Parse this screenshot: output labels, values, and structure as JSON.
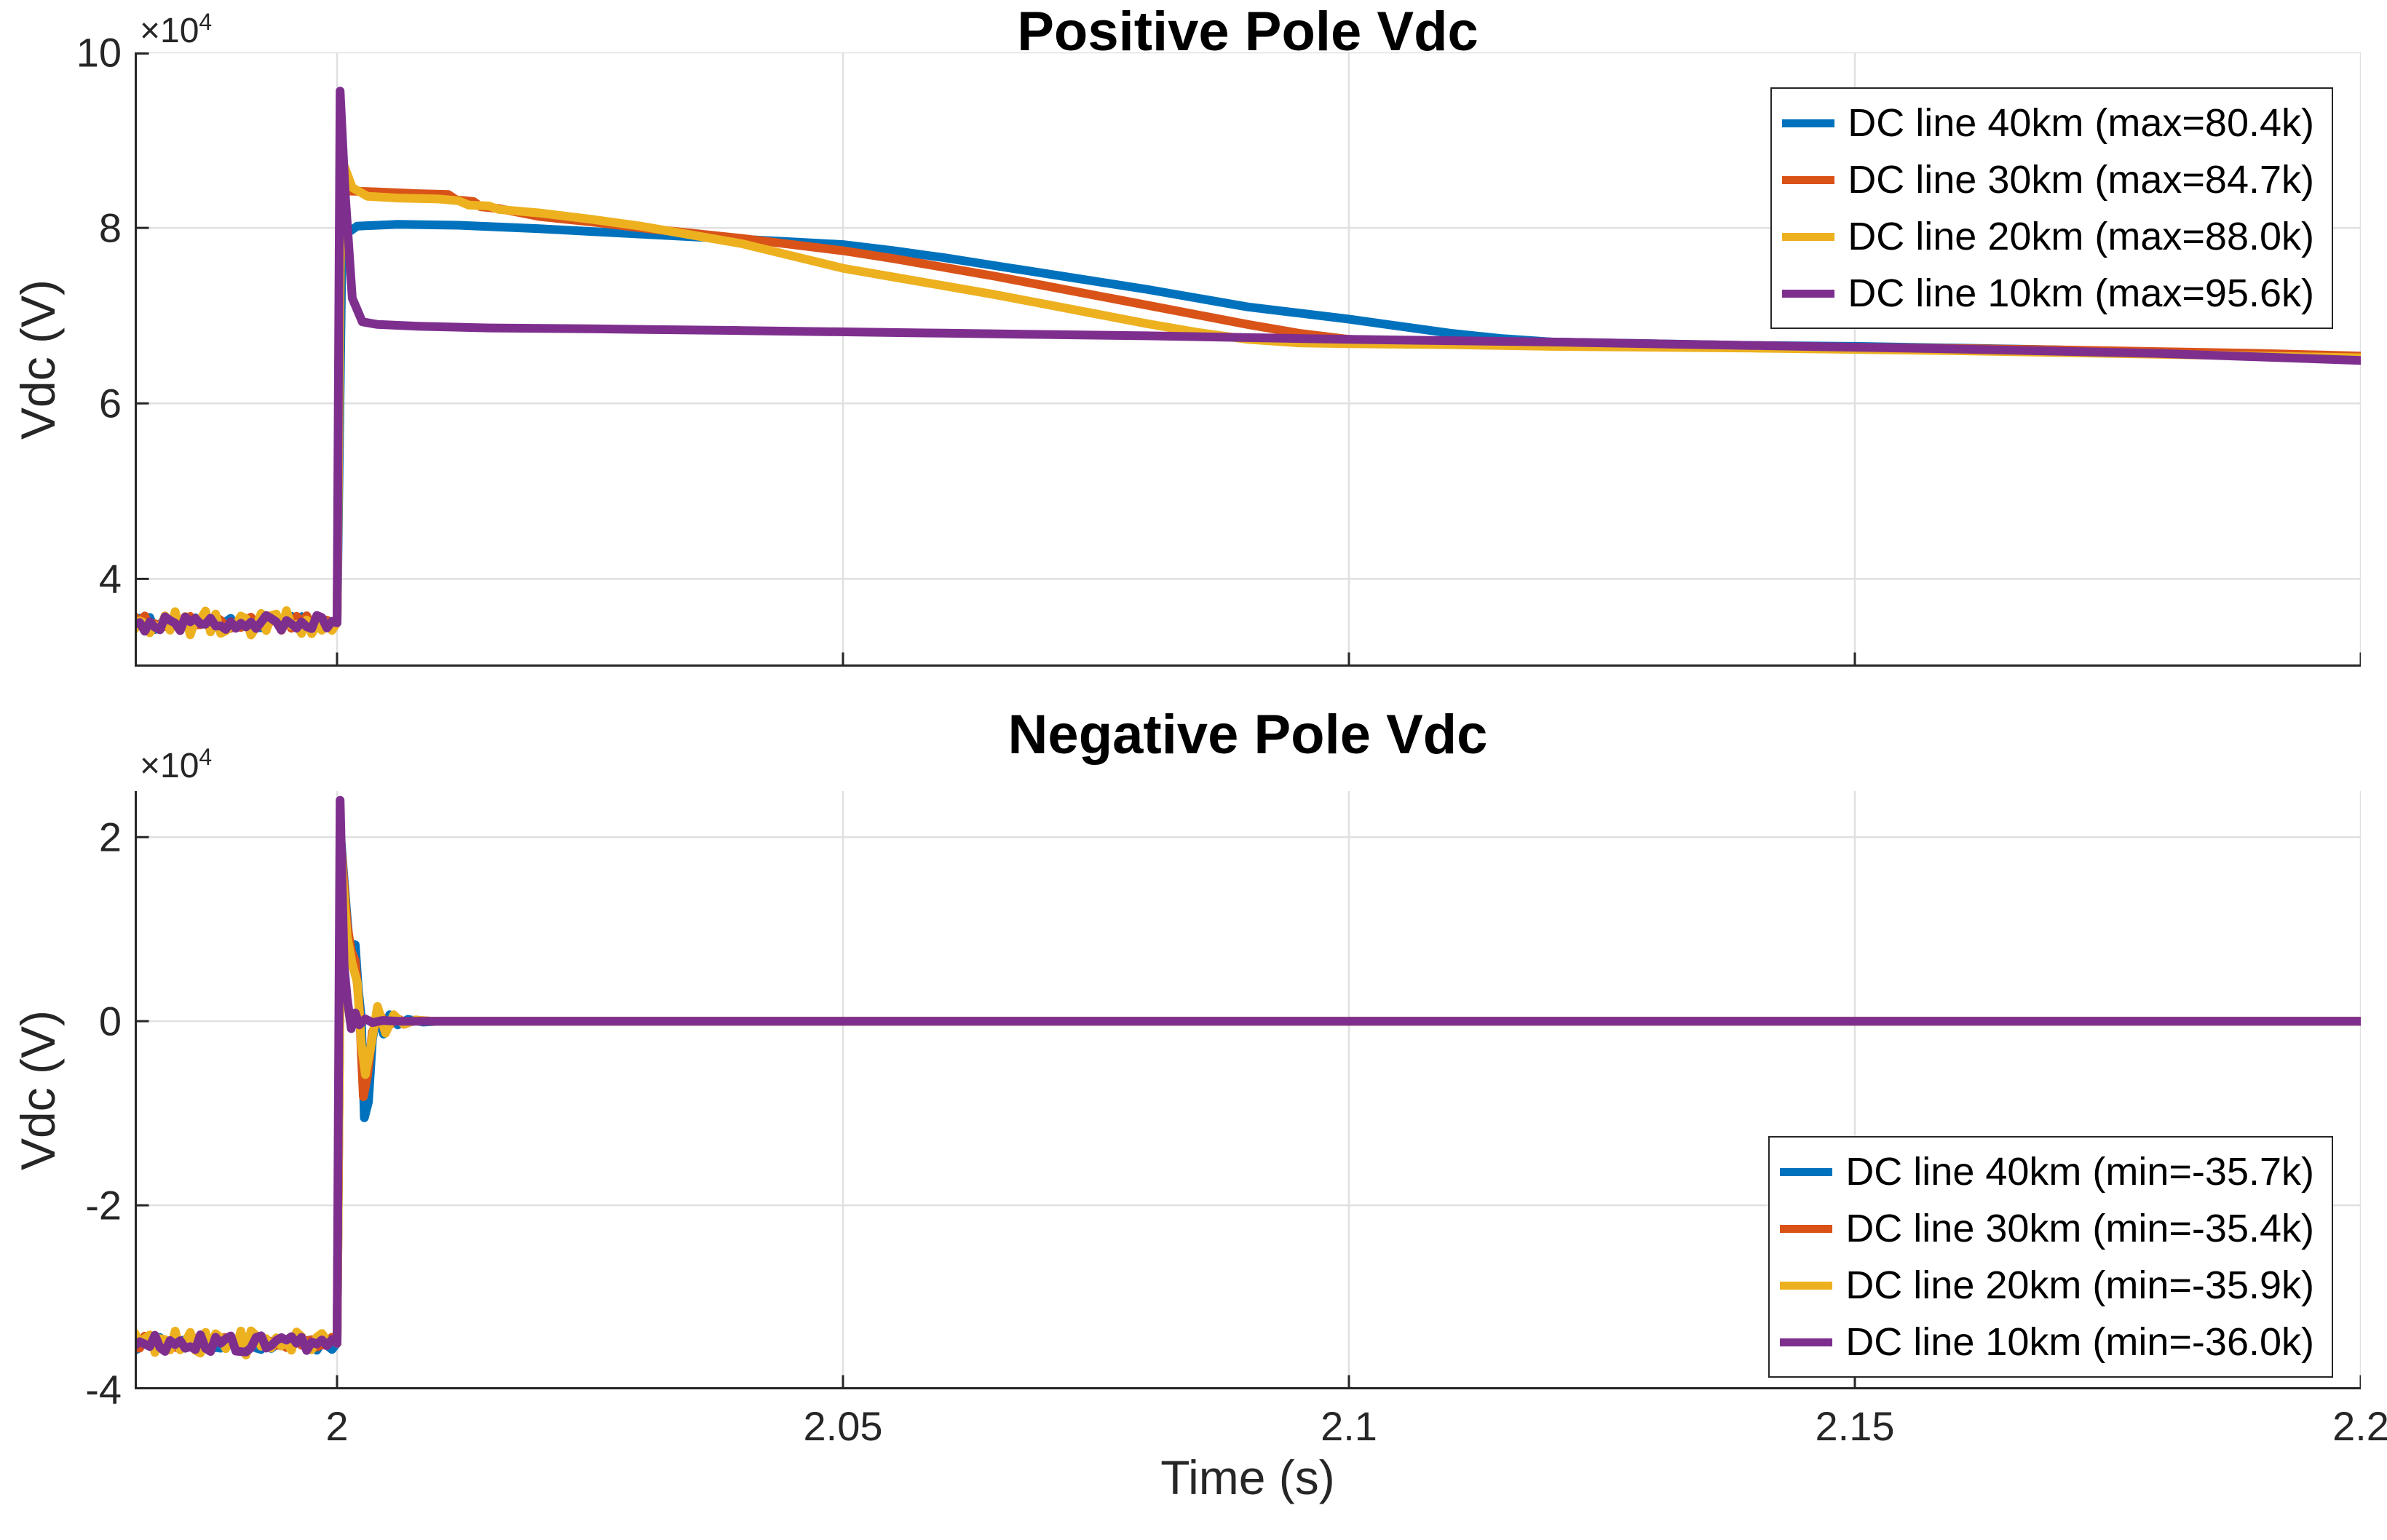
{
  "figure": {
    "xlabel": "Time (s)",
    "background": "#ffffff",
    "axis_color": "#262626",
    "grid_color": "#e0e0e0",
    "palette": {
      "blue": "#0072BD",
      "orange": "#D95319",
      "yellow": "#EDB120",
      "purple": "#7E2F8E"
    }
  },
  "chart_data": [
    {
      "type": "line",
      "title": "Positive Pole Vdc",
      "ylabel": "Vdc (V)",
      "y_exponent_base": "×10",
      "y_exponent_power": "4",
      "grid": true,
      "xlim": [
        1.98,
        2.2
      ],
      "ylim": [
        30000,
        100000
      ],
      "xticks": [
        2,
        2.05,
        2.1,
        2.15,
        2.2
      ],
      "xtick_labels": [
        "2",
        "2.05",
        "2.1",
        "2.15",
        "2.2"
      ],
      "show_xtick_labels": false,
      "yticks": [
        40000,
        60000,
        80000,
        100000
      ],
      "ytick_labels": [
        "4",
        "6",
        "8",
        "10"
      ],
      "legend_position": "top-right",
      "series": [
        {
          "name": "DC line 40km",
          "legend_label": "DC line 40km (max=80.4k)",
          "color": "#0072BD",
          "max_value": 80400,
          "pre_fault": {
            "t0": 1.98,
            "t1": 2.0,
            "level": 35000,
            "amplitude": 800,
            "step": 0.0005
          },
          "points": [
            [
              2.0,
              35000
            ],
            [
              2.0005,
              79000
            ],
            [
              2.002,
              80200
            ],
            [
              2.006,
              80400
            ],
            [
              2.012,
              80300
            ],
            [
              2.016,
              80100
            ],
            [
              2.02,
              79900
            ],
            [
              2.025,
              79600
            ],
            [
              2.03,
              79300
            ],
            [
              2.035,
              79000
            ],
            [
              2.04,
              78700
            ],
            [
              2.045,
              78400
            ],
            [
              2.05,
              78100
            ],
            [
              2.055,
              77400
            ],
            [
              2.06,
              76600
            ],
            [
              2.065,
              75700
            ],
            [
              2.07,
              74800
            ],
            [
              2.075,
              73900
            ],
            [
              2.08,
              73000
            ],
            [
              2.085,
              72000
            ],
            [
              2.09,
              71000
            ],
            [
              2.095,
              70300
            ],
            [
              2.1,
              69600
            ],
            [
              2.105,
              68800
            ],
            [
              2.11,
              68000
            ],
            [
              2.115,
              67400
            ],
            [
              2.12,
              67000
            ],
            [
              2.125,
              66900
            ],
            [
              2.13,
              66800
            ],
            [
              2.14,
              66600
            ],
            [
              2.15,
              66500
            ],
            [
              2.16,
              66300
            ],
            [
              2.17,
              66100
            ],
            [
              2.18,
              65800
            ],
            [
              2.19,
              65500
            ],
            [
              2.2,
              65100
            ]
          ]
        },
        {
          "name": "DC line 30km",
          "legend_label": "DC line 30km (max=84.7k)",
          "color": "#D95319",
          "max_value": 84700,
          "pre_fault": {
            "t0": 1.98,
            "t1": 2.0,
            "level": 35000,
            "amplitude": 800,
            "step": 0.0005
          },
          "points": [
            [
              2.0,
              35000
            ],
            [
              2.0004,
              84700
            ],
            [
              2.0012,
              84200
            ],
            [
              2.004,
              84100
            ],
            [
              2.008,
              83900
            ],
            [
              2.011,
              83800
            ],
            [
              2.0118,
              83200
            ],
            [
              2.0135,
              83000
            ],
            [
              2.0142,
              82400
            ],
            [
              2.016,
              82200
            ],
            [
              2.02,
              81300
            ],
            [
              2.025,
              80700
            ],
            [
              2.03,
              80000
            ],
            [
              2.035,
              79400
            ],
            [
              2.04,
              78800
            ],
            [
              2.045,
              78100
            ],
            [
              2.05,
              77400
            ],
            [
              2.055,
              76500
            ],
            [
              2.06,
              75500
            ],
            [
              2.065,
              74500
            ],
            [
              2.07,
              73400
            ],
            [
              2.075,
              72300
            ],
            [
              2.08,
              71200
            ],
            [
              2.085,
              70100
            ],
            [
              2.09,
              69000
            ],
            [
              2.095,
              68000
            ],
            [
              2.1,
              67300
            ],
            [
              2.105,
              67100
            ],
            [
              2.11,
              67000
            ],
            [
              2.12,
              66800
            ],
            [
              2.13,
              66700
            ],
            [
              2.15,
              66400
            ],
            [
              2.17,
              66100
            ],
            [
              2.19,
              65700
            ],
            [
              2.2,
              65400
            ]
          ]
        },
        {
          "name": "DC line 20km",
          "legend_label": "DC line 20km (max=88.0k)",
          "color": "#EDB120",
          "max_value": 88000,
          "pre_fault": {
            "t0": 1.98,
            "t1": 2.0,
            "level": 35000,
            "amplitude": 1400,
            "step": 0.0005
          },
          "points": [
            [
              2.0,
              35000
            ],
            [
              2.0004,
              88000
            ],
            [
              2.0015,
              84600
            ],
            [
              2.003,
              83600
            ],
            [
              2.006,
              83400
            ],
            [
              2.01,
              83300
            ],
            [
              2.012,
              83100
            ],
            [
              2.013,
              82600
            ],
            [
              2.015,
              82500
            ],
            [
              2.016,
              82100
            ],
            [
              2.017,
              82000
            ],
            [
              2.02,
              81700
            ],
            [
              2.025,
              81000
            ],
            [
              2.03,
              80200
            ],
            [
              2.035,
              79200
            ],
            [
              2.04,
              78200
            ],
            [
              2.045,
              76800
            ],
            [
              2.05,
              75400
            ],
            [
              2.055,
              74400
            ],
            [
              2.06,
              73400
            ],
            [
              2.065,
              72400
            ],
            [
              2.07,
              71300
            ],
            [
              2.075,
              70200
            ],
            [
              2.08,
              69100
            ],
            [
              2.085,
              68100
            ],
            [
              2.09,
              67300
            ],
            [
              2.095,
              66900
            ],
            [
              2.1,
              66800
            ],
            [
              2.11,
              66700
            ],
            [
              2.12,
              66500
            ],
            [
              2.14,
              66300
            ],
            [
              2.16,
              66000
            ],
            [
              2.18,
              65600
            ],
            [
              2.2,
              65200
            ]
          ]
        },
        {
          "name": "DC line 10km",
          "legend_label": "DC line 10km (max=95.6k)",
          "color": "#7E2F8E",
          "max_value": 95600,
          "pre_fault": {
            "t0": 1.98,
            "t1": 2.0,
            "level": 35000,
            "amplitude": 1000,
            "step": 0.0005
          },
          "points": [
            [
              2.0,
              35000
            ],
            [
              2.0003,
              95600
            ],
            [
              2.0008,
              84000
            ],
            [
              2.0015,
              72000
            ],
            [
              2.0025,
              69300
            ],
            [
              2.004,
              69000
            ],
            [
              2.008,
              68800
            ],
            [
              2.015,
              68600
            ],
            [
              2.025,
              68500
            ],
            [
              2.04,
              68300
            ],
            [
              2.06,
              68000
            ],
            [
              2.08,
              67700
            ],
            [
              2.1,
              67300
            ],
            [
              2.12,
              67000
            ],
            [
              2.14,
              66600
            ],
            [
              2.16,
              66200
            ],
            [
              2.18,
              65700
            ],
            [
              2.2,
              64900
            ]
          ]
        }
      ]
    },
    {
      "type": "line",
      "title": "Negative Pole Vdc",
      "ylabel": "Vdc (V)",
      "y_exponent_base": "×10",
      "y_exponent_power": "4",
      "grid": true,
      "xlim": [
        1.98,
        2.2
      ],
      "ylim": [
        -40000,
        25000
      ],
      "xticks": [
        2,
        2.05,
        2.1,
        2.15,
        2.2
      ],
      "xtick_labels": [
        "2",
        "2.05",
        "2.1",
        "2.15",
        "2.2"
      ],
      "show_xtick_labels": true,
      "yticks": [
        20000,
        0,
        -20000,
        -40000
      ],
      "ytick_labels": [
        "2",
        "0",
        "-2",
        "-4"
      ],
      "legend_position": "bottom-right",
      "series": [
        {
          "name": "DC line 40km",
          "legend_label": "DC line 40km (min=-35.7k)",
          "color": "#0072BD",
          "min_value": -35700,
          "pre_fault": {
            "t0": 1.98,
            "t1": 2.0,
            "level": -35000,
            "amplitude": 800,
            "step": 0.0005
          },
          "points": [
            [
              2.0,
              -35000
            ],
            [
              2.0004,
              19500
            ],
            [
              2.0009,
              12500
            ],
            [
              2.0012,
              8500
            ],
            [
              2.0018,
              8300
            ],
            [
              2.0021,
              3500
            ],
            [
              2.0024,
              300
            ],
            [
              2.0027,
              -10500
            ],
            [
              2.0031,
              -8800
            ],
            [
              2.0035,
              -2000
            ],
            [
              2.004,
              1100
            ],
            [
              2.0046,
              -1400
            ],
            [
              2.0052,
              700
            ],
            [
              2.006,
              -400
            ],
            [
              2.007,
              200
            ],
            [
              2.0085,
              -100
            ],
            [
              2.01,
              0
            ],
            [
              2.2,
              0
            ]
          ]
        },
        {
          "name": "DC line 30km",
          "legend_label": "DC line 30km (min=-35.4k)",
          "color": "#D95319",
          "min_value": -35400,
          "pre_fault": {
            "t0": 1.98,
            "t1": 2.0,
            "level": -35000,
            "amplitude": 800,
            "step": 0.0005
          },
          "points": [
            [
              2.0,
              -35000
            ],
            [
              2.0004,
              19000
            ],
            [
              2.001,
              10500
            ],
            [
              2.0014,
              7600
            ],
            [
              2.0018,
              6600
            ],
            [
              2.0022,
              1500
            ],
            [
              2.0026,
              -8200
            ],
            [
              2.003,
              -6000
            ],
            [
              2.0035,
              -1200
            ],
            [
              2.0042,
              800
            ],
            [
              2.005,
              -700
            ],
            [
              2.0058,
              400
            ],
            [
              2.0068,
              -200
            ],
            [
              2.008,
              100
            ],
            [
              2.0095,
              0
            ],
            [
              2.2,
              0
            ]
          ]
        },
        {
          "name": "DC line 20km",
          "legend_label": "DC line 20km (min=-35.9k)",
          "color": "#EDB120",
          "min_value": -35900,
          "pre_fault": {
            "t0": 1.98,
            "t1": 2.0,
            "level": -35000,
            "amplitude": 1400,
            "step": 0.0005
          },
          "points": [
            [
              2.0,
              -35000
            ],
            [
              2.0004,
              18200
            ],
            [
              2.001,
              9200
            ],
            [
              2.0015,
              6200
            ],
            [
              2.002,
              4200
            ],
            [
              2.0024,
              -2500
            ],
            [
              2.0028,
              -5800
            ],
            [
              2.0033,
              -3000
            ],
            [
              2.004,
              1600
            ],
            [
              2.0048,
              -1300
            ],
            [
              2.0056,
              700
            ],
            [
              2.0066,
              -350
            ],
            [
              2.0078,
              150
            ],
            [
              2.009,
              0
            ],
            [
              2.2,
              0
            ]
          ]
        },
        {
          "name": "DC line 10km",
          "legend_label": "DC line 10km (min=-36.0k)",
          "color": "#7E2F8E",
          "min_value": -36000,
          "pre_fault": {
            "t0": 1.98,
            "t1": 2.0,
            "level": -35000,
            "amplitude": 1000,
            "step": 0.0005
          },
          "points": [
            [
              2.0,
              -35000
            ],
            [
              2.0003,
              24000
            ],
            [
              2.0007,
              6000
            ],
            [
              2.001,
              2500
            ],
            [
              2.0014,
              -800
            ],
            [
              2.0018,
              900
            ],
            [
              2.0022,
              -400
            ],
            [
              2.0028,
              250
            ],
            [
              2.0035,
              -150
            ],
            [
              2.0045,
              80
            ],
            [
              2.006,
              0
            ],
            [
              2.2,
              0
            ]
          ]
        }
      ]
    }
  ]
}
